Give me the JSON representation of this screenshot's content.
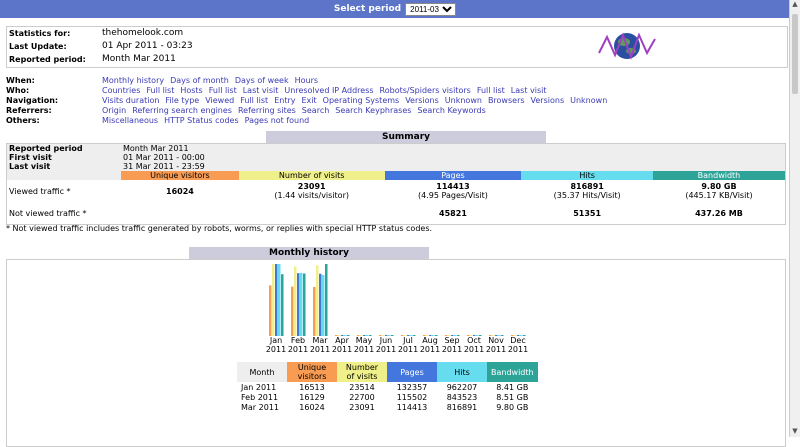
{
  "topbar": {
    "label": "Select period",
    "period": "2011-03"
  },
  "info": {
    "stats_label": "Statistics for:",
    "stats_value": "thehomelook.com",
    "update_label": "Last Update:",
    "update_value": "01 Apr 2011 - 03:23",
    "period_label": "Reported period:",
    "period_value": "Month Mar 2011"
  },
  "nav": [
    {
      "label": "When:",
      "links": [
        "Monthly history",
        "Days of month",
        "Days of week",
        "Hours"
      ]
    },
    {
      "label": "Who:",
      "links": [
        "Countries",
        "Full list",
        "Hosts",
        "Full list",
        "Last visit",
        "Unresolved IP Address",
        "Robots/Spiders visitors",
        "Full list",
        "Last visit"
      ]
    },
    {
      "label": "Navigation:",
      "links": [
        "Visits duration",
        "File type",
        "Viewed",
        "Full list",
        "Entry",
        "Exit",
        "Operating Systems",
        "Versions",
        "Unknown",
        "Browsers",
        "Versions",
        "Unknown"
      ]
    },
    {
      "label": "Referrers:",
      "links": [
        "Origin",
        "Referring search engines",
        "Referring sites",
        "Search",
        "Search Keyphrases",
        "Search Keywords"
      ]
    },
    {
      "label": "Others:",
      "links": [
        "Miscellaneous",
        "HTTP Status codes",
        "Pages not found"
      ]
    }
  ],
  "summary": {
    "title": "Summary",
    "reported_period_label": "Reported period",
    "reported_period_value": "Month Mar 2011",
    "first_visit_label": "First visit",
    "first_visit_value": "01 Mar 2011 - 00:00",
    "last_visit_label": "Last visit",
    "last_visit_value": "31 Mar 2011 - 23:59",
    "headers": {
      "uv": "Unique visitors",
      "nv": "Number of visits",
      "pg": "Pages",
      "ht": "Hits",
      "bw": "Bandwidth"
    },
    "viewed_label": "Viewed traffic *",
    "viewed": {
      "uv": "16024",
      "nv": "23091",
      "nv_sub": "(1.44 visits/visitor)",
      "pg": "114413",
      "pg_sub": "(4.95 Pages/Visit)",
      "ht": "816891",
      "ht_sub": "(35.37 Hits/Visit)",
      "bw": "9.80 GB",
      "bw_sub": "(445.17 KB/Visit)"
    },
    "notviewed_label": "Not viewed traffic *",
    "notviewed": {
      "pg": "45821",
      "ht": "51351",
      "bw": "437.26 MB"
    }
  },
  "note": "* Not viewed traffic includes traffic generated by robots, worms, or replies with special HTTP status codes.",
  "monthly": {
    "title": "Monthly history",
    "months": [
      [
        "Jan",
        "2011"
      ],
      [
        "Feb",
        "2011"
      ],
      [
        "Mar",
        "2011"
      ],
      [
        "Apr",
        "2011"
      ],
      [
        "May",
        "2011"
      ],
      [
        "Jun",
        "2011"
      ],
      [
        "Jul",
        "2011"
      ],
      [
        "Aug",
        "2011"
      ],
      [
        "Sep",
        "2011"
      ],
      [
        "Oct",
        "2011"
      ],
      [
        "Nov",
        "2011"
      ],
      [
        "Dec",
        "2011"
      ]
    ],
    "table": {
      "headers": {
        "month": "Month",
        "uv": "Unique visitors",
        "nv": "Number of visits",
        "pg": "Pages",
        "ht": "Hits",
        "bw": "Bandwidth"
      },
      "rows": [
        {
          "month": "Jan 2011",
          "uv": "16513",
          "nv": "23514",
          "pg": "132357",
          "ht": "962207",
          "bw": "8.41 GB"
        },
        {
          "month": "Feb 2011",
          "uv": "16129",
          "nv": "22700",
          "pg": "115502",
          "ht": "843523",
          "bw": "8.51 GB"
        },
        {
          "month": "Mar 2011",
          "uv": "16024",
          "nv": "23091",
          "pg": "114413",
          "ht": "816891",
          "bw": "9.80 GB"
        }
      ]
    }
  },
  "chart_data": {
    "type": "bar",
    "categories": [
      "Jan 2011",
      "Feb 2011",
      "Mar 2011",
      "Apr 2011",
      "May 2011",
      "Jun 2011",
      "Jul 2011",
      "Aug 2011",
      "Sep 2011",
      "Oct 2011",
      "Nov 2011",
      "Dec 2011"
    ],
    "series": [
      {
        "name": "Unique visitors",
        "color": "#f89c54",
        "values": [
          16513,
          16129,
          16024,
          0,
          0,
          0,
          0,
          0,
          0,
          0,
          0,
          0
        ]
      },
      {
        "name": "Number of visits",
        "color": "#f0f08a",
        "values": [
          23514,
          22700,
          23091,
          0,
          0,
          0,
          0,
          0,
          0,
          0,
          0,
          0
        ]
      },
      {
        "name": "Pages",
        "color": "#4477dd",
        "values": [
          132357,
          115502,
          114413,
          0,
          0,
          0,
          0,
          0,
          0,
          0,
          0,
          0
        ]
      },
      {
        "name": "Hits",
        "color": "#66ddee",
        "values": [
          962207,
          843523,
          816891,
          0,
          0,
          0,
          0,
          0,
          0,
          0,
          0,
          0
        ]
      },
      {
        "name": "Bandwidth",
        "color": "#2ea398",
        "values": [
          8.41,
          8.51,
          9.8,
          0,
          0,
          0,
          0,
          0,
          0,
          0,
          0,
          0
        ]
      }
    ]
  }
}
